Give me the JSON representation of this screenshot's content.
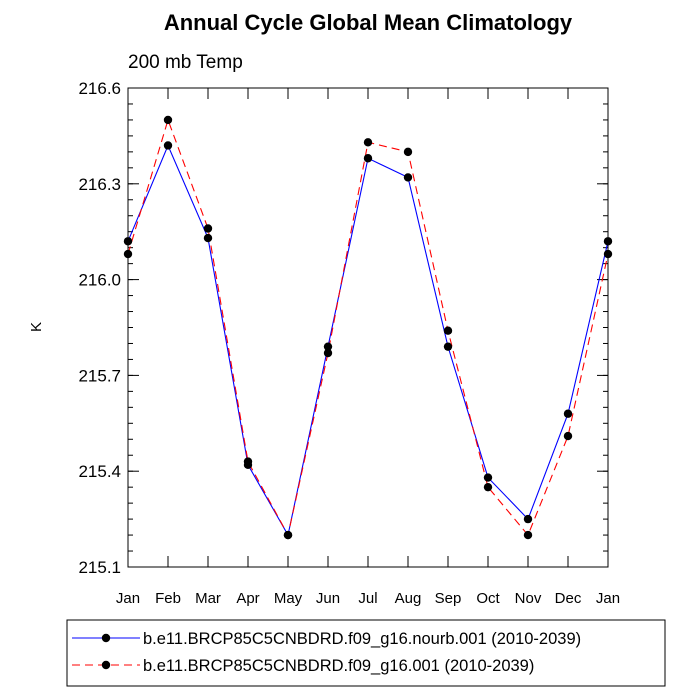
{
  "chart_data": {
    "type": "line",
    "title": "Annual Cycle Global Mean Climatology",
    "subtitle": "200 mb Temp",
    "xlabel": "",
    "ylabel": "K",
    "categories": [
      "Jan",
      "Feb",
      "Mar",
      "Apr",
      "May",
      "Jun",
      "Jul",
      "Aug",
      "Sep",
      "Oct",
      "Nov",
      "Dec",
      "Jan"
    ],
    "ylim": [
      215.1,
      216.6
    ],
    "yticks": [
      "215.1",
      "215.4",
      "215.7",
      "216.0",
      "216.3",
      "216.6"
    ],
    "grid": false,
    "legend_position": "bottom",
    "series": [
      {
        "name": "b.e11.BRCP85C5CNBDRD.f09_g16.nourb.001 (2010-2039)",
        "color": "#0000ff",
        "dash": "solid",
        "values": [
          216.12,
          216.42,
          216.13,
          215.42,
          215.2,
          215.79,
          216.38,
          216.32,
          215.79,
          215.38,
          215.25,
          215.58,
          216.12
        ]
      },
      {
        "name": "b.e11.BRCP85C5CNBDRD.f09_g16.001 (2010-2039)",
        "color": "#ff0000",
        "dash": "dashed",
        "values": [
          216.08,
          216.5,
          216.16,
          215.43,
          215.2,
          215.77,
          216.43,
          216.4,
          215.84,
          215.35,
          215.2,
          215.51,
          216.08
        ]
      }
    ]
  }
}
